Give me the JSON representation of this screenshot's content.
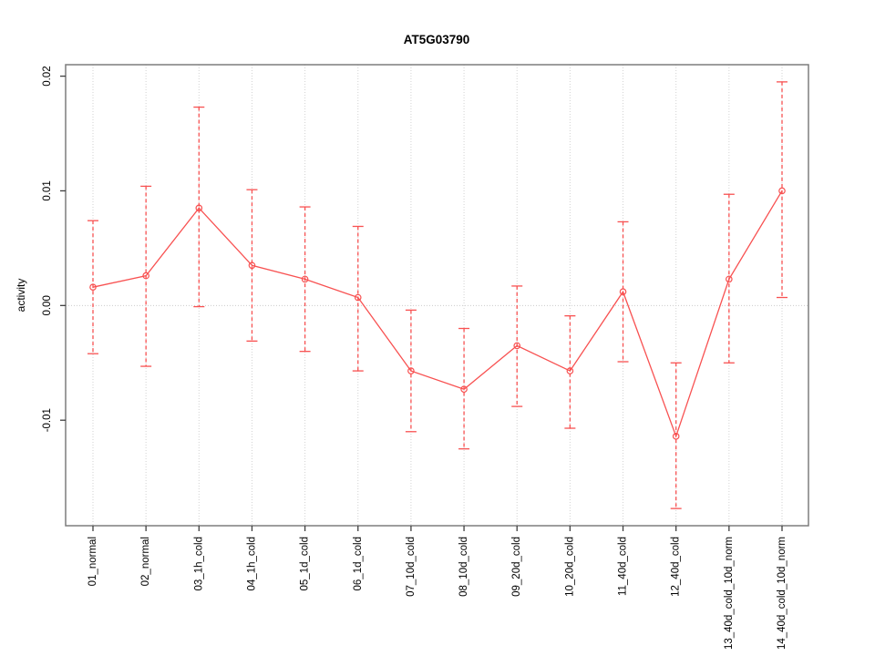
{
  "figure": {
    "title": "AT5G03790",
    "background": "#ffffff"
  },
  "chart_data": {
    "type": "line",
    "title": "AT5G03790",
    "xlabel": "",
    "ylabel": "activity",
    "legend_position": "none",
    "grid": {
      "vertical_at_categories": true,
      "horizontal_at_zero": true,
      "style": "dotted"
    },
    "marker": "open-circle",
    "error_bar_style": "dashed-with-caps",
    "categories": [
      "01_normal",
      "02_normal",
      "03_1h_cold",
      "04_1h_cold",
      "05_1d_cold",
      "06_1d_cold",
      "07_10d_cold",
      "08_10d_cold",
      "09_20d_cold",
      "10_20d_cold",
      "11_40d_cold",
      "12_40d_cold",
      "13_40d_cold_10d_norm",
      "14_40d_cold_10d_norm"
    ],
    "series": [
      {
        "name": "activity",
        "values": [
          0.0016,
          0.0026,
          0.0085,
          0.0035,
          0.0023,
          0.0007,
          -0.0057,
          -0.0073,
          -0.0035,
          -0.0057,
          0.0012,
          -0.0114,
          0.0023,
          0.01
        ],
        "error_high": [
          0.0074,
          0.0104,
          0.0173,
          0.0101,
          0.0086,
          0.0069,
          -0.0004,
          -0.002,
          0.0017,
          -0.0009,
          0.0073,
          -0.005,
          0.0097,
          0.0195
        ],
        "error_low": [
          -0.0042,
          -0.0053,
          -0.0001,
          -0.0031,
          -0.004,
          -0.0057,
          -0.011,
          -0.0125,
          -0.0088,
          -0.0107,
          -0.0049,
          -0.0177,
          -0.005,
          0.0007
        ]
      }
    ],
    "ylim": [
      -0.0192,
      0.021
    ],
    "yticks": [
      {
        "value": -0.01,
        "label": "-0.01"
      },
      {
        "value": 0,
        "label": "0.00"
      },
      {
        "value": 0.01,
        "label": "0.01"
      },
      {
        "value": 0.02,
        "label": "0.02"
      }
    ],
    "colors": {
      "series": "#f85151",
      "grid": "#d2d2d2",
      "zero_line": "#cccccc",
      "box": "#7d7d7d",
      "tick": "#3f3f3f",
      "text": "#000000",
      "background": "#ffffff"
    }
  }
}
